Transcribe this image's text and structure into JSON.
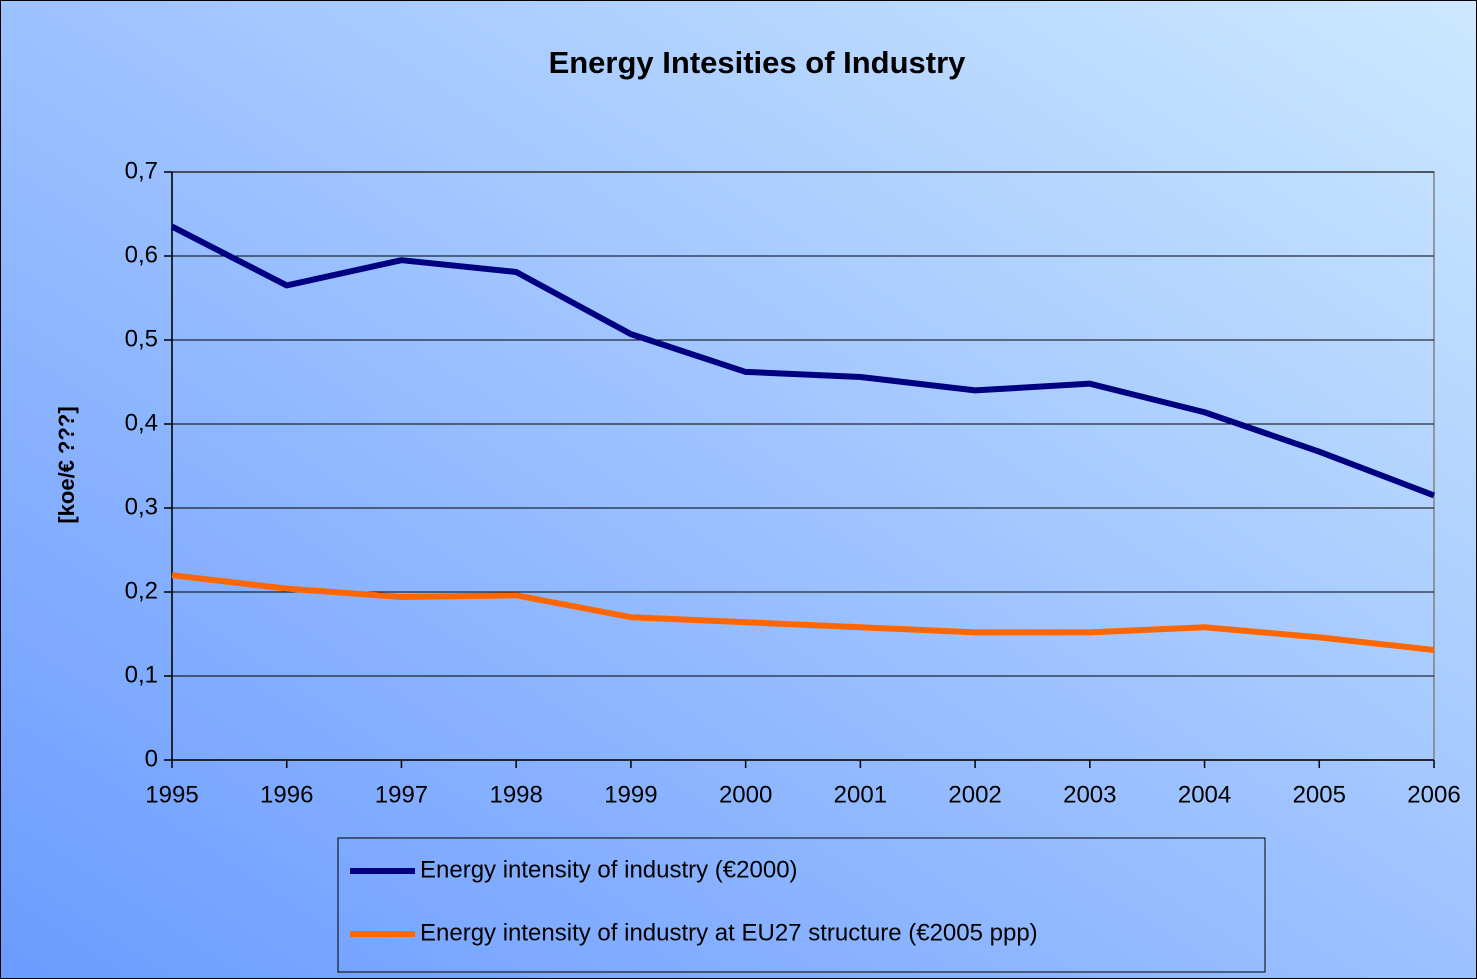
{
  "chart_data": {
    "type": "line",
    "title": "Energy Intesities of Industry",
    "y_label": "[koe/€ ???]",
    "categories": [
      "1995",
      "1996",
      "1997",
      "1998",
      "1999",
      "2000",
      "2001",
      "2002",
      "2003",
      "2004",
      "2005",
      "2006"
    ],
    "series": [
      {
        "name": "Energy intensity of industry (€2000)",
        "color": "#000080",
        "values": [
          0.635,
          0.565,
          0.595,
          0.581,
          0.507,
          0.462,
          0.456,
          0.44,
          0.448,
          0.414,
          0.367,
          0.315
        ]
      },
      {
        "name": "Energy intensity of industry at EU27 structure (€2005 ppp)",
        "color": "#ff6600",
        "values": [
          0.22,
          0.204,
          0.194,
          0.196,
          0.17,
          0.164,
          0.158,
          0.152,
          0.152,
          0.158,
          0.146,
          0.131
        ]
      }
    ],
    "ylim": [
      0,
      0.7
    ],
    "yticks": [
      0,
      {
        "value": 0.1,
        "label": "0,1"
      },
      {
        "value": 0.2,
        "label": "0,2"
      },
      {
        "value": 0.3,
        "label": "0,3"
      },
      {
        "value": 0.4,
        "label": "0,4"
      },
      {
        "value": 0.5,
        "label": "0,5"
      },
      {
        "value": 0.6,
        "label": "0,6"
      },
      {
        "value": 0.7,
        "label": "0,7"
      }
    ],
    "grid": true,
    "legend": "bottom"
  }
}
